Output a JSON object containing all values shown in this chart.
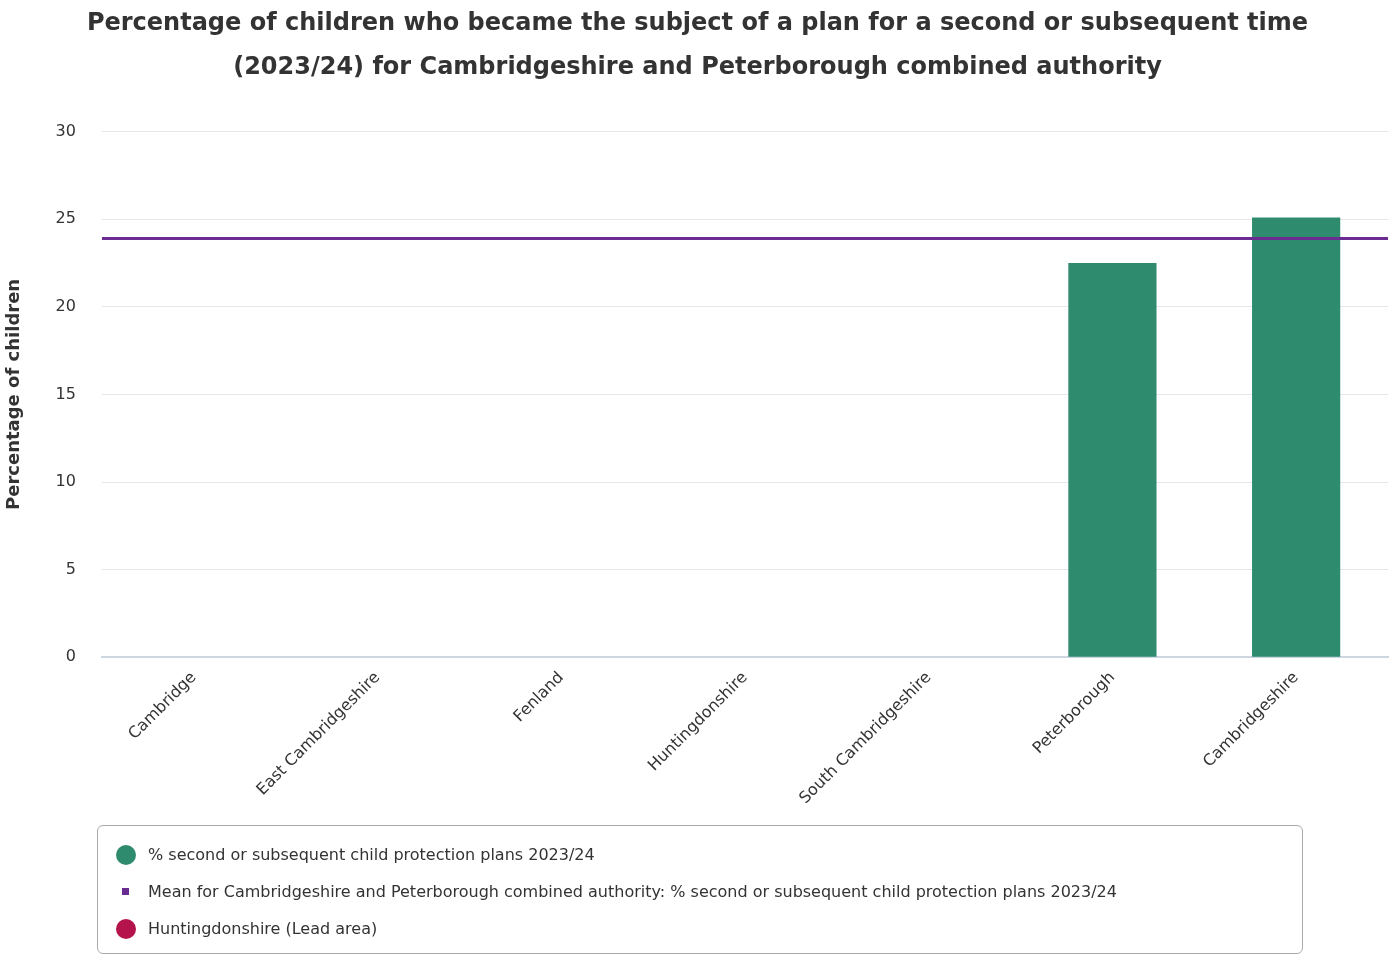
{
  "chart_data": {
    "type": "bar",
    "title": "Percentage of children who became the subject of a plan for a second or subsequent time (2023/24) for Cambridgeshire and Peterborough combined authority",
    "ylabel": "Percentage of children",
    "categories": [
      "Cambridge",
      "East Cambridgeshire",
      "Fenland",
      "Huntingdonshire",
      "South Cambridgeshire",
      "Peterborough",
      "Cambridgeshire"
    ],
    "series": [
      {
        "name": "% second or subsequent child protection plans 2023/24",
        "color": "#2e8b6e",
        "values": [
          null,
          null,
          null,
          null,
          null,
          22.5,
          25.1
        ]
      },
      {
        "name": "Huntingdonshire (Lead area)",
        "color": "#b5134b",
        "type": "scatter",
        "values": [
          null,
          null,
          null,
          null,
          null,
          null,
          null
        ]
      }
    ],
    "ref_lines": [
      {
        "axis": "y",
        "value": 23.9,
        "label": "Mean for Cambridgeshire and Peterborough combined authority: % second or subsequent child protection plans 2023/24",
        "color": "#6a2c91"
      }
    ],
    "ylim": [
      0,
      30
    ],
    "yticks": [
      0,
      5,
      10,
      15,
      20,
      25,
      30
    ],
    "grid": "y",
    "legend": "bottom"
  }
}
